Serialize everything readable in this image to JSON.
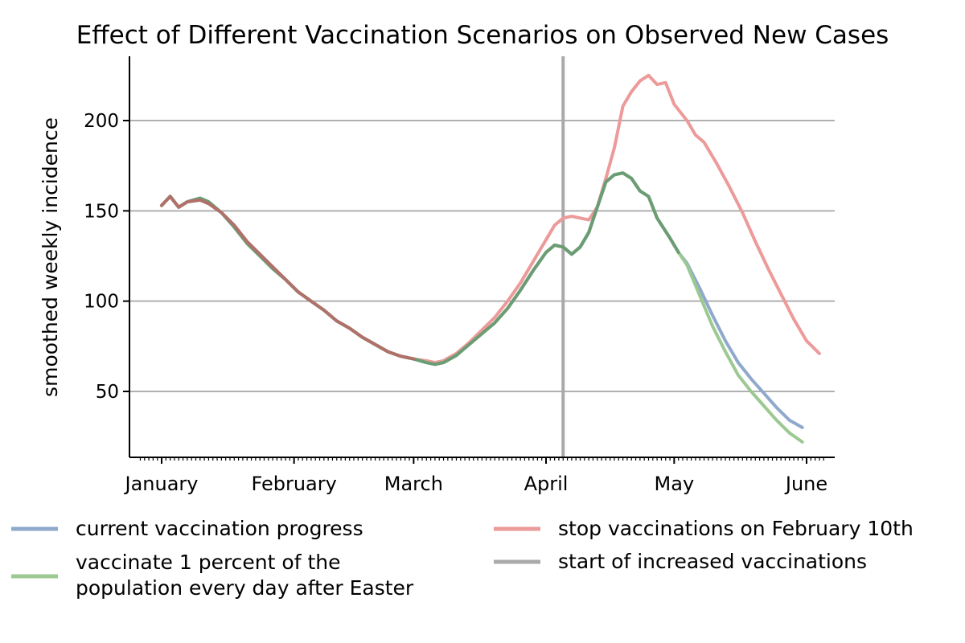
{
  "chart_data": {
    "type": "line",
    "title": "Effect of Different Vaccination Scenarios on Observed New Cases",
    "xlabel": "",
    "ylabel": "smoothed weekly incidence",
    "xlim": [
      "2021-01-01",
      "2021-06-01"
    ],
    "ylim": [
      12,
      235
    ],
    "yticks": [
      50,
      100,
      150,
      200
    ],
    "xticks": [
      {
        "date": "2021-01-01",
        "label": "January"
      },
      {
        "date": "2021-02-01",
        "label": "February"
      },
      {
        "date": "2021-03-01",
        "label": "March"
      },
      {
        "date": "2021-04-01",
        "label": "April"
      },
      {
        "date": "2021-05-01",
        "label": "May"
      },
      {
        "date": "2021-06-01",
        "label": "June"
      }
    ],
    "grid": "horizontal",
    "legend_position": "bottom",
    "vline": {
      "date": "2021-04-05",
      "name": "start of increased vaccinations",
      "color": "#aaaaaa"
    },
    "series": [
      {
        "name": "current vaccination progress",
        "color": "#8fa9cc",
        "points": [
          [
            "2021-01-01",
            153
          ],
          [
            "2021-01-03",
            158
          ],
          [
            "2021-01-05",
            152
          ],
          [
            "2021-01-07",
            155
          ],
          [
            "2021-01-10",
            157
          ],
          [
            "2021-01-12",
            155
          ],
          [
            "2021-01-15",
            149
          ],
          [
            "2021-01-18",
            141
          ],
          [
            "2021-01-21",
            132
          ],
          [
            "2021-01-24",
            125
          ],
          [
            "2021-01-27",
            118
          ],
          [
            "2021-01-30",
            112
          ],
          [
            "2021-02-02",
            105
          ],
          [
            "2021-02-05",
            100
          ],
          [
            "2021-02-08",
            95
          ],
          [
            "2021-02-11",
            89
          ],
          [
            "2021-02-14",
            85
          ],
          [
            "2021-02-17",
            80
          ],
          [
            "2021-02-20",
            76
          ],
          [
            "2021-02-23",
            72
          ],
          [
            "2021-02-26",
            69.5
          ],
          [
            "2021-03-01",
            68
          ],
          [
            "2021-03-04",
            66
          ],
          [
            "2021-03-06",
            65
          ],
          [
            "2021-03-08",
            66
          ],
          [
            "2021-03-11",
            70
          ],
          [
            "2021-03-14",
            76
          ],
          [
            "2021-03-17",
            82
          ],
          [
            "2021-03-20",
            88
          ],
          [
            "2021-03-23",
            96
          ],
          [
            "2021-03-26",
            106
          ],
          [
            "2021-03-29",
            117
          ],
          [
            "2021-04-01",
            127
          ],
          [
            "2021-04-03",
            131
          ],
          [
            "2021-04-05",
            130
          ],
          [
            "2021-04-07",
            126
          ],
          [
            "2021-04-09",
            130
          ],
          [
            "2021-04-11",
            138
          ],
          [
            "2021-04-13",
            152
          ],
          [
            "2021-04-15",
            166
          ],
          [
            "2021-04-17",
            170
          ],
          [
            "2021-04-19",
            171
          ],
          [
            "2021-04-21",
            168
          ],
          [
            "2021-04-23",
            161
          ],
          [
            "2021-04-25",
            158
          ],
          [
            "2021-04-27",
            146
          ],
          [
            "2021-04-30",
            135
          ],
          [
            "2021-05-02",
            127
          ],
          [
            "2021-05-04",
            121
          ],
          [
            "2021-05-07",
            107
          ],
          [
            "2021-05-10",
            92
          ],
          [
            "2021-05-13",
            78
          ],
          [
            "2021-05-16",
            66
          ],
          [
            "2021-05-19",
            57
          ],
          [
            "2021-05-22",
            49
          ],
          [
            "2021-05-25",
            41
          ],
          [
            "2021-05-28",
            34
          ],
          [
            "2021-05-31",
            30
          ]
        ]
      },
      {
        "name": "stop vaccinations on February 10th",
        "color": "#ec9a9a",
        "points": [
          [
            "2021-01-01",
            153
          ],
          [
            "2021-01-03",
            158
          ],
          [
            "2021-01-05",
            152
          ],
          [
            "2021-01-07",
            155
          ],
          [
            "2021-01-10",
            156
          ],
          [
            "2021-01-12",
            154
          ],
          [
            "2021-01-15",
            149
          ],
          [
            "2021-01-18",
            142
          ],
          [
            "2021-01-21",
            133
          ],
          [
            "2021-01-24",
            126
          ],
          [
            "2021-01-27",
            119
          ],
          [
            "2021-01-30",
            112
          ],
          [
            "2021-02-02",
            105
          ],
          [
            "2021-02-05",
            100
          ],
          [
            "2021-02-08",
            95
          ],
          [
            "2021-02-11",
            89
          ],
          [
            "2021-02-14",
            85
          ],
          [
            "2021-02-17",
            80
          ],
          [
            "2021-02-20",
            76
          ],
          [
            "2021-02-23",
            72
          ],
          [
            "2021-02-26",
            69.5
          ],
          [
            "2021-03-01",
            68
          ],
          [
            "2021-03-04",
            67
          ],
          [
            "2021-03-06",
            66
          ],
          [
            "2021-03-08",
            67
          ],
          [
            "2021-03-11",
            71
          ],
          [
            "2021-03-14",
            77
          ],
          [
            "2021-03-17",
            84
          ],
          [
            "2021-03-20",
            91
          ],
          [
            "2021-03-23",
            100
          ],
          [
            "2021-03-26",
            110
          ],
          [
            "2021-03-29",
            122
          ],
          [
            "2021-04-01",
            134
          ],
          [
            "2021-04-03",
            142
          ],
          [
            "2021-04-05",
            146
          ],
          [
            "2021-04-07",
            147
          ],
          [
            "2021-04-09",
            146
          ],
          [
            "2021-04-11",
            145
          ],
          [
            "2021-04-13",
            152
          ],
          [
            "2021-04-15",
            168
          ],
          [
            "2021-04-17",
            185
          ],
          [
            "2021-04-19",
            208
          ],
          [
            "2021-04-21",
            216
          ],
          [
            "2021-04-23",
            222
          ],
          [
            "2021-04-25",
            225
          ],
          [
            "2021-04-27",
            220
          ],
          [
            "2021-04-29",
            221
          ],
          [
            "2021-05-01",
            209
          ],
          [
            "2021-05-04",
            200
          ],
          [
            "2021-05-06",
            192
          ],
          [
            "2021-05-08",
            188
          ],
          [
            "2021-05-11",
            176
          ],
          [
            "2021-05-14",
            163
          ],
          [
            "2021-05-17",
            149
          ],
          [
            "2021-05-20",
            133
          ],
          [
            "2021-05-23",
            118
          ],
          [
            "2021-05-26",
            104
          ],
          [
            "2021-05-29",
            90
          ],
          [
            "2021-06-01",
            78
          ],
          [
            "2021-06-04",
            71
          ]
        ]
      },
      {
        "name": "vaccinate 1 percent of the population every day after Easter",
        "color": "#9cc991",
        "points": [
          [
            "2021-01-01",
            153
          ],
          [
            "2021-01-03",
            158
          ],
          [
            "2021-01-05",
            152
          ],
          [
            "2021-01-07",
            155
          ],
          [
            "2021-01-10",
            157
          ],
          [
            "2021-01-12",
            155
          ],
          [
            "2021-01-15",
            149
          ],
          [
            "2021-01-18",
            141
          ],
          [
            "2021-01-21",
            132
          ],
          [
            "2021-01-24",
            125
          ],
          [
            "2021-01-27",
            118
          ],
          [
            "2021-01-30",
            112
          ],
          [
            "2021-02-02",
            105
          ],
          [
            "2021-02-05",
            100
          ],
          [
            "2021-02-08",
            95
          ],
          [
            "2021-02-11",
            89
          ],
          [
            "2021-02-14",
            85
          ],
          [
            "2021-02-17",
            80
          ],
          [
            "2021-02-20",
            76
          ],
          [
            "2021-02-23",
            72
          ],
          [
            "2021-02-26",
            69.5
          ],
          [
            "2021-03-01",
            68
          ],
          [
            "2021-03-04",
            66
          ],
          [
            "2021-03-06",
            65
          ],
          [
            "2021-03-08",
            66
          ],
          [
            "2021-03-11",
            70
          ],
          [
            "2021-03-14",
            76
          ],
          [
            "2021-03-17",
            82
          ],
          [
            "2021-03-20",
            88
          ],
          [
            "2021-03-23",
            96
          ],
          [
            "2021-03-26",
            106
          ],
          [
            "2021-03-29",
            117
          ],
          [
            "2021-04-01",
            127
          ],
          [
            "2021-04-03",
            131
          ],
          [
            "2021-04-05",
            130
          ],
          [
            "2021-04-07",
            126
          ],
          [
            "2021-04-09",
            130
          ],
          [
            "2021-04-11",
            138
          ],
          [
            "2021-04-13",
            152
          ],
          [
            "2021-04-15",
            166
          ],
          [
            "2021-04-17",
            170
          ],
          [
            "2021-04-19",
            171
          ],
          [
            "2021-04-21",
            168
          ],
          [
            "2021-04-23",
            161
          ],
          [
            "2021-04-25",
            158
          ],
          [
            "2021-04-27",
            146
          ],
          [
            "2021-04-30",
            135
          ],
          [
            "2021-05-02",
            127
          ],
          [
            "2021-05-04",
            120
          ],
          [
            "2021-05-07",
            103
          ],
          [
            "2021-05-10",
            86
          ],
          [
            "2021-05-13",
            72
          ],
          [
            "2021-05-16",
            59
          ],
          [
            "2021-05-19",
            50
          ],
          [
            "2021-05-22",
            42
          ],
          [
            "2021-05-25",
            34
          ],
          [
            "2021-05-28",
            27
          ],
          [
            "2021-05-31",
            22
          ]
        ]
      },
      {
        "name": "",
        "color": "#6b9c74",
        "points": [
          [
            "2021-01-01",
            153
          ],
          [
            "2021-01-03",
            158
          ],
          [
            "2021-01-05",
            152
          ],
          [
            "2021-01-07",
            155
          ],
          [
            "2021-01-10",
            157
          ],
          [
            "2021-01-12",
            155
          ],
          [
            "2021-01-15",
            149
          ],
          [
            "2021-01-18",
            141
          ],
          [
            "2021-01-21",
            132
          ],
          [
            "2021-01-24",
            125
          ],
          [
            "2021-01-27",
            118
          ],
          [
            "2021-01-30",
            112
          ],
          [
            "2021-02-02",
            105
          ],
          [
            "2021-02-05",
            100
          ],
          [
            "2021-02-08",
            95
          ],
          [
            "2021-02-11",
            89
          ],
          [
            "2021-02-14",
            85
          ],
          [
            "2021-02-17",
            80
          ],
          [
            "2021-02-20",
            76
          ],
          [
            "2021-02-23",
            72
          ],
          [
            "2021-02-26",
            69.5
          ],
          [
            "2021-03-01",
            68
          ],
          [
            "2021-03-04",
            66
          ],
          [
            "2021-03-06",
            65
          ],
          [
            "2021-03-08",
            66
          ],
          [
            "2021-03-11",
            70
          ],
          [
            "2021-03-14",
            76
          ],
          [
            "2021-03-17",
            82
          ],
          [
            "2021-03-20",
            88
          ],
          [
            "2021-03-23",
            96
          ],
          [
            "2021-03-26",
            106
          ],
          [
            "2021-03-29",
            117
          ],
          [
            "2021-04-01",
            127
          ],
          [
            "2021-04-03",
            131
          ],
          [
            "2021-04-05",
            130
          ],
          [
            "2021-04-07",
            126
          ],
          [
            "2021-04-09",
            130
          ],
          [
            "2021-04-11",
            138
          ],
          [
            "2021-04-13",
            152
          ],
          [
            "2021-04-15",
            166
          ],
          [
            "2021-04-17",
            170
          ],
          [
            "2021-04-19",
            171
          ],
          [
            "2021-04-21",
            168
          ],
          [
            "2021-04-23",
            161
          ],
          [
            "2021-04-25",
            158
          ],
          [
            "2021-04-27",
            146
          ],
          [
            "2021-04-30",
            135
          ],
          [
            "2021-05-02",
            127
          ]
        ]
      },
      {
        "name": "",
        "color": "#b0716a",
        "points": [
          [
            "2021-01-01",
            153
          ],
          [
            "2021-01-03",
            158
          ],
          [
            "2021-01-05",
            152
          ],
          [
            "2021-01-07",
            155
          ],
          [
            "2021-01-10",
            156
          ],
          [
            "2021-01-12",
            154
          ],
          [
            "2021-01-15",
            149
          ],
          [
            "2021-01-18",
            142
          ],
          [
            "2021-01-21",
            133
          ],
          [
            "2021-01-24",
            126
          ],
          [
            "2021-01-27",
            119
          ],
          [
            "2021-01-30",
            112
          ],
          [
            "2021-02-02",
            105
          ],
          [
            "2021-02-05",
            100
          ],
          [
            "2021-02-08",
            95
          ],
          [
            "2021-02-11",
            89
          ],
          [
            "2021-02-14",
            85
          ],
          [
            "2021-02-17",
            80
          ],
          [
            "2021-02-20",
            76
          ],
          [
            "2021-02-23",
            72
          ],
          [
            "2021-02-26",
            69.5
          ],
          [
            "2021-03-01",
            68
          ]
        ]
      }
    ],
    "legend": [
      {
        "label": "current vaccination progress",
        "color": "#8fa9cc"
      },
      {
        "label": "stop vaccinations on February 10th",
        "color": "#ec9a9a"
      },
      {
        "label": "vaccinate 1 percent of the",
        "label2": "population every day after Easter",
        "color": "#9cc991"
      },
      {
        "label": "start of increased vaccinations",
        "color": "#aaaaaa"
      }
    ]
  }
}
